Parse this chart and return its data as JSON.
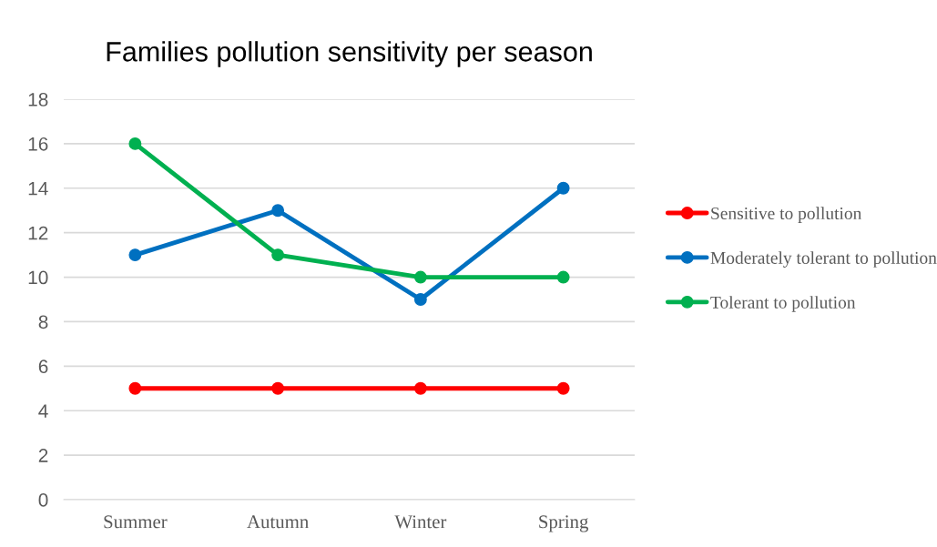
{
  "chart_data": {
    "type": "line",
    "title": "Families pollution sensitivity per season",
    "categories": [
      "Summer",
      "Autumn",
      "Winter",
      "Spring"
    ],
    "series": [
      {
        "name": "Sensitive to pollution",
        "color": "#ff0000",
        "values": [
          5,
          5,
          5,
          5
        ]
      },
      {
        "name": "Moderately tolerant to pollution",
        "color": "#0070c0",
        "values": [
          11,
          13,
          9,
          14
        ]
      },
      {
        "name": "Tolerant to pollution",
        "color": "#00b050",
        "values": [
          16,
          11,
          10,
          10
        ]
      }
    ],
    "ylim": [
      0,
      18
    ],
    "yticks": [
      0,
      2,
      4,
      6,
      8,
      10,
      12,
      14,
      16,
      18
    ],
    "grid": "y",
    "legend": "right",
    "marker": "circle",
    "line_style": "solid"
  }
}
